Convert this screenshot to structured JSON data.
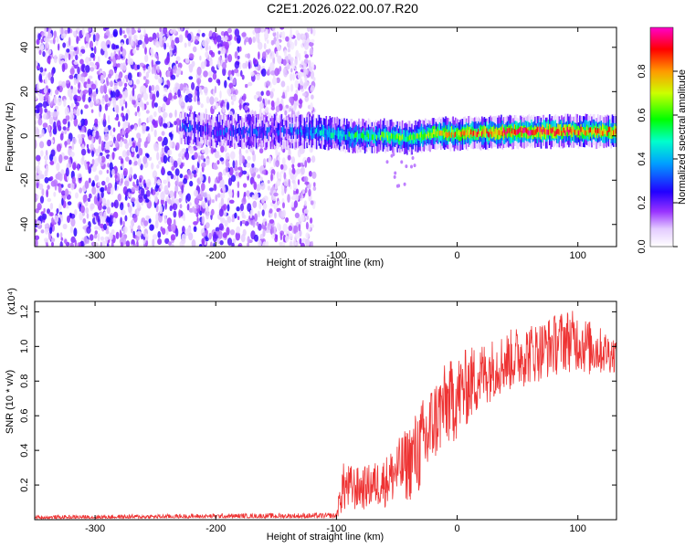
{
  "title": "C2E1.2026.022.00.07.R20",
  "chart_data": [
    {
      "type": "heatmap",
      "name": "spectrogram",
      "xlabel": "Height of straight line (km)",
      "ylabel": "Frequency (Hz)",
      "xlim": [
        -350,
        132
      ],
      "ylim": [
        -50,
        49
      ],
      "xticks": [
        -300,
        -200,
        -100,
        0,
        100
      ],
      "xtick_labels": [
        "-300",
        "-200",
        "-100",
        "0",
        "100"
      ],
      "yticks": [
        -40,
        -20,
        0,
        20,
        40
      ],
      "ytick_labels": [
        "-40",
        "-20",
        "0",
        "20",
        "40"
      ],
      "colorbar": {
        "label": "Normalized spectral amplitude",
        "range": [
          0,
          1
        ],
        "ticks": [
          0,
          0.2,
          0.4,
          0.6,
          0.8
        ],
        "tick_labels": [
          "0.0",
          "0.2",
          "0.4",
          "0.6",
          "0.8"
        ],
        "colors": [
          "#ffffff",
          "#cc99ff",
          "#7f00ff",
          "#0000ff",
          "#00d0ff",
          "#00ff60",
          "#d0ff00",
          "#ff8800",
          "#ff0000",
          "#ff00cc"
        ]
      },
      "description_of_content": "noise speckle for height < -120 km; signal band centered near 1-2 Hz from -240 km to 132 km, intensifying toward positive heights",
      "band": [
        {
          "x": -230,
          "y": 4,
          "amp": 0.25
        },
        {
          "x": -200,
          "y": 2,
          "amp": 0.25
        },
        {
          "x": -150,
          "y": 2,
          "amp": 0.25
        },
        {
          "x": -120,
          "y": 2,
          "amp": 0.35
        },
        {
          "x": -90,
          "y": 0,
          "amp": 0.5
        },
        {
          "x": -60,
          "y": 0,
          "amp": 0.55
        },
        {
          "x": -40,
          "y": -1,
          "amp": 0.6
        },
        {
          "x": -20,
          "y": 1,
          "amp": 0.7
        },
        {
          "x": 0,
          "y": 1,
          "amp": 0.75
        },
        {
          "x": 30,
          "y": 1.5,
          "amp": 0.85
        },
        {
          "x": 60,
          "y": 2,
          "amp": 0.9
        },
        {
          "x": 90,
          "y": 2,
          "amp": 0.85
        },
        {
          "x": 132,
          "y": 2,
          "amp": 0.8
        }
      ]
    },
    {
      "type": "line",
      "name": "snr",
      "xlabel": "Height of straight line (km)",
      "ylabel": "SNR (10 * v/v)",
      "yscale_label": "(x10⁴)",
      "xlim": [
        -350,
        132
      ],
      "ylim": [
        0,
        1.26
      ],
      "xticks": [
        -300,
        -200,
        -100,
        0,
        100
      ],
      "xtick_labels": [
        "-300",
        "-200",
        "-100",
        "0",
        "100"
      ],
      "yticks": [
        0.2,
        0.4,
        0.6,
        0.8,
        1.0,
        1.2
      ],
      "ytick_labels": [
        "0.2",
        "0.4",
        "0.6",
        "0.8",
        "1.0",
        "1.2"
      ],
      "color": "#ee3333",
      "envelope": {
        "x": [
          -350,
          -200,
          -100,
          -95,
          -80,
          -60,
          -40,
          -25,
          -20,
          -10,
          0,
          10,
          30,
          50,
          70,
          90,
          100,
          110,
          132
        ],
        "low": [
          0.005,
          0.01,
          0.01,
          0.03,
          0.05,
          0.07,
          0.1,
          0.15,
          0.3,
          0.4,
          0.45,
          0.55,
          0.7,
          0.75,
          0.8,
          0.85,
          0.85,
          0.82,
          0.85
        ],
        "high": [
          0.025,
          0.035,
          0.04,
          0.33,
          0.3,
          0.36,
          0.55,
          0.75,
          0.8,
          0.9,
          0.95,
          1.0,
          1.05,
          1.12,
          1.15,
          1.22,
          1.2,
          1.15,
          1.05
        ]
      }
    }
  ]
}
